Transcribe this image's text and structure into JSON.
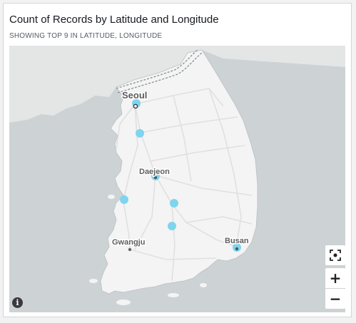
{
  "visual": {
    "title": "Count of Records by Latitude and Longitude",
    "subtitle": "SHOWING TOP 9 IN LATITUDE, LONGITUDE"
  },
  "map": {
    "labels": {
      "seoul": "Seoul",
      "daejeon": "Daejeon",
      "gwangju": "Gwangju",
      "busan": "Busan"
    },
    "controls": {
      "zoom_in": "+",
      "zoom_out": "−",
      "info": "i"
    },
    "icons": [
      "fit-bounds-icon",
      "zoom-in-icon",
      "zoom-out-icon",
      "info-icon"
    ],
    "colors": {
      "sea": "#cdd3d5",
      "land": "#f4f4f4",
      "north_land": "#e4e6e6",
      "marker": "#7fd4ee",
      "road": "#e2e2e2",
      "label": "#5f5f5f"
    }
  }
}
